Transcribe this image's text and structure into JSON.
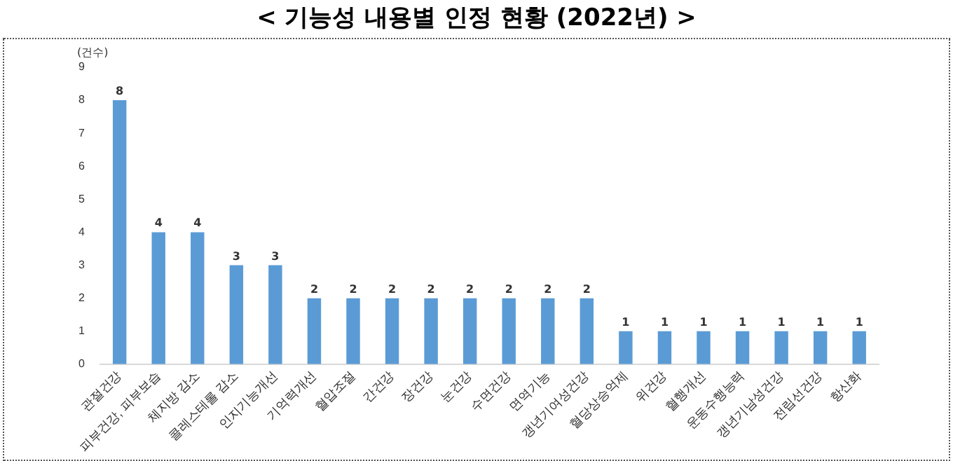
{
  "chart_data": {
    "type": "bar",
    "title": "< 기능성 내용별 인정 현황 (2022년) >",
    "ylabel": "(건수)",
    "categories": [
      "관절건강",
      "피부건강, 피부보습",
      "체지방 감소",
      "콜레스테롤 감소",
      "인지기능개선",
      "기억력개선",
      "혈압조절",
      "간건강",
      "장건강",
      "눈건강",
      "수면건강",
      "면역기능",
      "갱년기여성건강",
      "혈당상승억제",
      "위건강",
      "혈행개선",
      "운동수행능력",
      "갱년기남성건강",
      "전립선건강",
      "항산화"
    ],
    "values": [
      8,
      4,
      4,
      3,
      3,
      2,
      2,
      2,
      2,
      2,
      2,
      2,
      2,
      1,
      1,
      1,
      1,
      1,
      1,
      1
    ],
    "color": "#5b9bd5",
    "ylim": [
      0,
      9
    ],
    "yticks": [
      0,
      1,
      2,
      3,
      4,
      5,
      6,
      7,
      8,
      9
    ],
    "grid": false,
    "legend": false,
    "data_labels": true
  }
}
